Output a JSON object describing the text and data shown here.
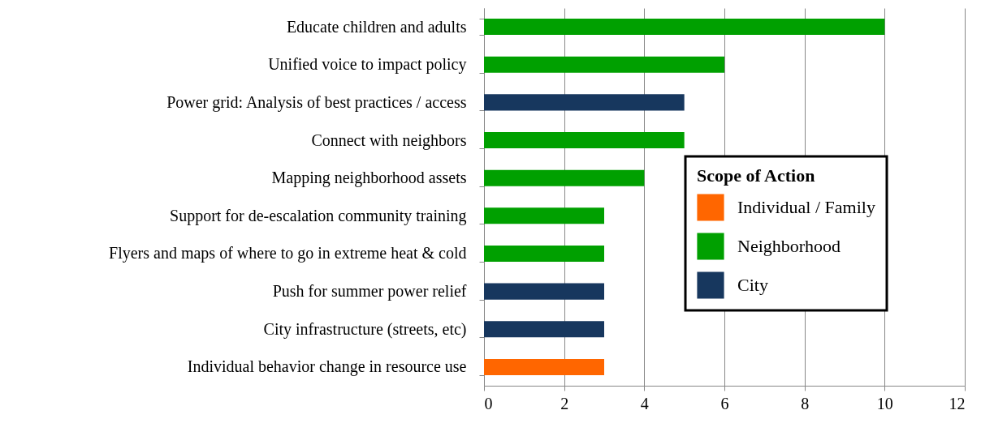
{
  "chart_data": {
    "type": "bar",
    "orientation": "horizontal",
    "stacked": true,
    "categories": [
      "Educate children and adults",
      "Unified voice to impact policy",
      "Power grid: Analysis of best practices / access",
      "Connect with neighbors",
      "Mapping neighborhood assets",
      "Support for de-escalation community training",
      "Flyers and maps of where to go in extreme heat & cold",
      "Push for summer power relief",
      "City infrastructure (streets, etc)",
      "Individual behavior change in resource use"
    ],
    "series": [
      {
        "name": "Individual / Family",
        "color": "#ff6600",
        "values": [
          null,
          null,
          null,
          null,
          null,
          null,
          null,
          null,
          null,
          3
        ]
      },
      {
        "name": "Neighborhood",
        "color": "#00a000",
        "values": [
          10,
          6,
          null,
          5,
          4,
          3,
          3,
          null,
          null,
          null
        ]
      },
      {
        "name": "City",
        "color": "#17375e",
        "values": [
          null,
          null,
          5,
          null,
          null,
          null,
          null,
          3,
          3,
          null
        ]
      }
    ],
    "legend_title": "Scope of Action",
    "legend": "right",
    "xlim": [
      0,
      12
    ],
    "xticks": [
      0,
      2,
      4,
      6,
      8,
      10,
      12
    ],
    "grid": "x"
  }
}
